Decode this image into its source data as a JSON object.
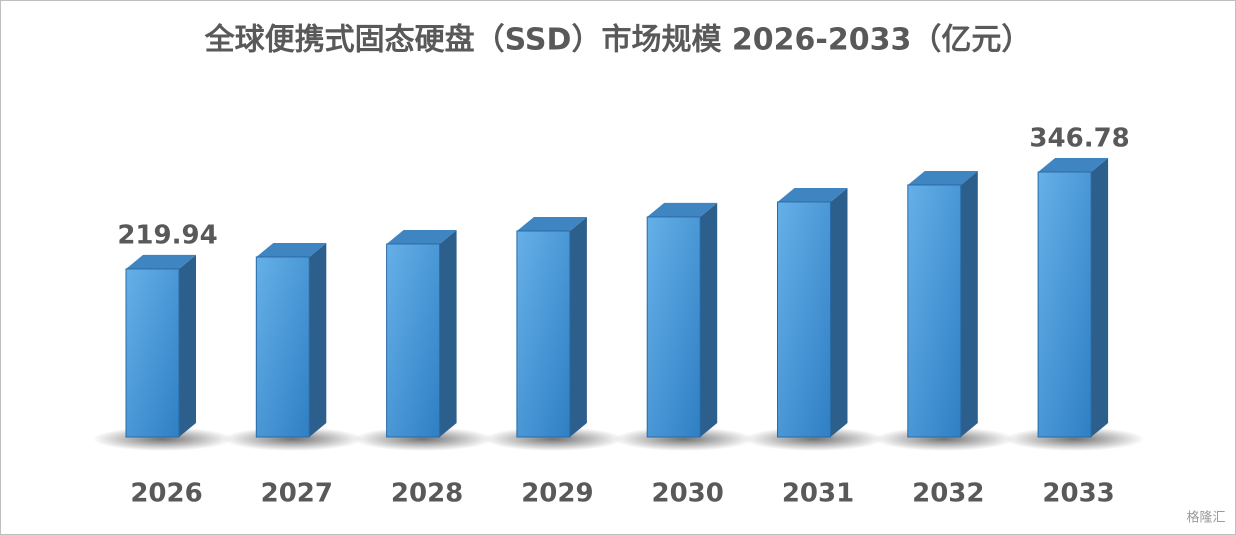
{
  "chart_data": {
    "type": "bar3d",
    "title": "全球便携式固态硬盘（SSD）市场规模 2026-2033（亿元）",
    "categories": [
      "2026",
      "2027",
      "2028",
      "2029",
      "2030",
      "2031",
      "2032",
      "2033"
    ],
    "values": [
      219.94,
      235.6,
      252.6,
      269.6,
      288.0,
      307.6,
      329.8,
      346.78
    ],
    "value_labels": [
      "219.94",
      null,
      null,
      null,
      null,
      null,
      null,
      "346.78"
    ],
    "color": "#4b9ad8",
    "watermark": "格隆汇"
  }
}
